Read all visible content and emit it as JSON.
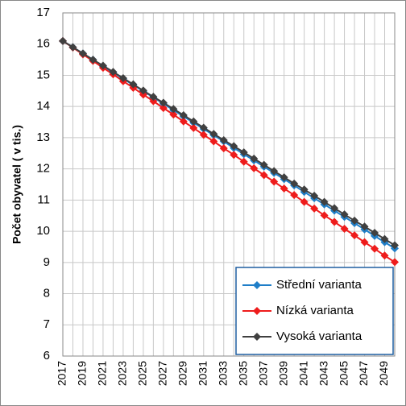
{
  "chart_data": {
    "type": "line",
    "y_label": "Počet obyvatel ( v tis.)",
    "x": [
      2017,
      2018,
      2019,
      2020,
      2021,
      2022,
      2023,
      2024,
      2025,
      2026,
      2027,
      2028,
      2029,
      2030,
      2031,
      2032,
      2033,
      2034,
      2035,
      2036,
      2037,
      2038,
      2039,
      2040,
      2041,
      2042,
      2043,
      2044,
      2045,
      2046,
      2047,
      2048,
      2049,
      2050
    ],
    "xlim": [
      2017,
      2050
    ],
    "xticks": [
      2017,
      2019,
      2021,
      2023,
      2025,
      2027,
      2029,
      2031,
      2033,
      2035,
      2037,
      2039,
      2041,
      2043,
      2045,
      2047,
      2049
    ],
    "ylim": [
      6,
      17
    ],
    "yticks": [
      6,
      7,
      8,
      9,
      10,
      11,
      12,
      13,
      14,
      15,
      16,
      17
    ],
    "grid": true,
    "legend": "lower right",
    "series": [
      {
        "name": "Střední varianta",
        "color": "#1f7ec8",
        "values": [
          16.1,
          15.9,
          15.7,
          15.5,
          15.29,
          15.09,
          14.89,
          14.69,
          14.49,
          14.29,
          14.09,
          13.88,
          13.68,
          13.48,
          13.28,
          13.08,
          12.88,
          12.67,
          12.47,
          12.27,
          12.07,
          11.87,
          11.67,
          11.47,
          11.26,
          11.06,
          10.86,
          10.66,
          10.46,
          10.26,
          10.06,
          9.85,
          9.65,
          9.45
        ]
      },
      {
        "name": "Nízká varianta",
        "color": "#ee1c1c",
        "values": [
          16.1,
          15.89,
          15.67,
          15.46,
          15.24,
          15.03,
          14.81,
          14.6,
          14.38,
          14.17,
          13.95,
          13.74,
          13.52,
          13.31,
          13.09,
          12.88,
          12.66,
          12.45,
          12.23,
          12.02,
          11.8,
          11.59,
          11.37,
          11.16,
          10.94,
          10.73,
          10.51,
          10.3,
          10.08,
          9.87,
          9.65,
          9.44,
          9.22,
          9.01
        ]
      },
      {
        "name": "Vysoká varianta",
        "color": "#404040",
        "values": [
          16.1,
          15.9,
          15.7,
          15.5,
          15.31,
          15.11,
          14.91,
          14.71,
          14.51,
          14.31,
          14.12,
          13.92,
          13.72,
          13.52,
          13.32,
          13.12,
          12.92,
          12.73,
          12.53,
          12.33,
          12.13,
          11.93,
          11.73,
          11.53,
          11.34,
          11.14,
          10.94,
          10.74,
          10.54,
          10.34,
          10.15,
          9.95,
          9.75,
          9.55
        ]
      }
    ]
  }
}
